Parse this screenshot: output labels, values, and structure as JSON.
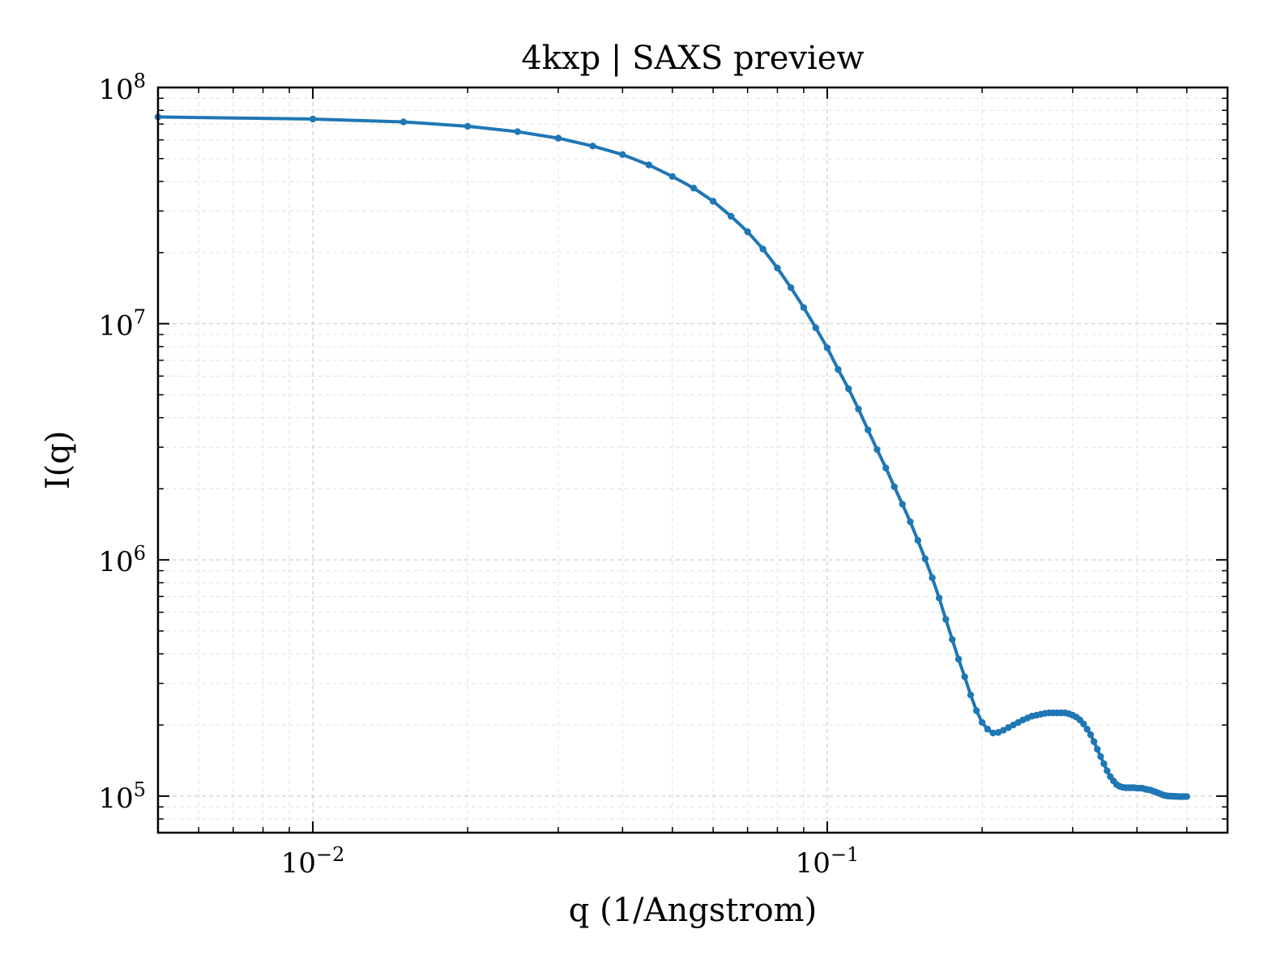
{
  "chart_data": {
    "type": "line",
    "title": "4kxp | SAXS preview",
    "xlabel": "q (1/Angstrom)",
    "ylabel": "I(q)",
    "xscale": "log",
    "yscale": "log",
    "xlim": [
      0.005,
      0.6
    ],
    "ylim": [
      70000,
      100000000
    ],
    "grid": true,
    "series_color": "#1f77b4",
    "x_ticks": [
      {
        "value": 0.01,
        "base": "10",
        "exp": "−2"
      },
      {
        "value": 0.1,
        "base": "10",
        "exp": "−1"
      }
    ],
    "y_ticks": [
      {
        "value": 100000,
        "base": "10",
        "exp": "5"
      },
      {
        "value": 1000000,
        "base": "10",
        "exp": "6"
      },
      {
        "value": 10000000,
        "base": "10",
        "exp": "7"
      },
      {
        "value": 100000000,
        "base": "10",
        "exp": "8"
      }
    ],
    "series": [
      {
        "x": [
          0.005,
          0.01,
          0.015,
          0.02,
          0.025,
          0.03,
          0.035,
          0.04,
          0.045,
          0.05,
          0.055,
          0.06,
          0.065,
          0.07,
          0.075,
          0.08,
          0.085,
          0.09,
          0.095,
          0.1,
          0.105,
          0.11,
          0.115,
          0.12,
          0.125,
          0.13,
          0.135,
          0.14,
          0.145,
          0.15,
          0.155,
          0.16,
          0.165,
          0.17,
          0.175,
          0.18,
          0.185,
          0.19,
          0.195,
          0.2,
          0.205,
          0.21,
          0.215,
          0.22,
          0.225,
          0.23,
          0.235,
          0.24,
          0.245,
          0.25,
          0.255,
          0.26,
          0.265,
          0.27,
          0.275,
          0.28,
          0.285,
          0.29,
          0.295,
          0.3,
          0.305,
          0.31,
          0.315,
          0.32,
          0.325,
          0.33,
          0.335,
          0.34,
          0.345,
          0.35,
          0.355,
          0.36,
          0.365,
          0.37,
          0.375,
          0.38,
          0.385,
          0.39,
          0.395,
          0.4,
          0.405,
          0.41,
          0.415,
          0.42,
          0.425,
          0.43,
          0.435,
          0.44,
          0.445,
          0.45,
          0.455,
          0.46,
          0.465,
          0.47,
          0.475,
          0.48,
          0.485,
          0.49,
          0.495,
          0.5
        ],
        "y": [
          75000000,
          73500000,
          71500000,
          68500000,
          65000000,
          61000000,
          56500000,
          52000000,
          47000000,
          42000000,
          37500000,
          33000000,
          28500000,
          24500000,
          20700000,
          17200000,
          14200000,
          11700000,
          9600000,
          7900000,
          6400000,
          5300000,
          4350000,
          3550000,
          2930000,
          2450000,
          2040000,
          1720000,
          1450000,
          1210000,
          1010000,
          840000,
          690000,
          560000,
          460000,
          380000,
          320000,
          268000,
          230000,
          205000,
          192000,
          185000,
          186000,
          190000,
          195000,
          200000,
          205000,
          210000,
          214000,
          218000,
          220000,
          222000,
          224000,
          225000,
          225000,
          225000,
          225000,
          225000,
          223000,
          220000,
          216000,
          210000,
          202000,
          192000,
          182000,
          170000,
          158000,
          147000,
          137000,
          128000,
          121000,
          116000,
          112000,
          110000,
          109000,
          108500,
          108500,
          108500,
          108500,
          108000,
          108000,
          108000,
          107000,
          106500,
          106000,
          105000,
          104000,
          103000,
          102000,
          101000,
          100500,
          100000,
          100000,
          99800,
          99700,
          99600,
          99500,
          99500,
          99500,
          99500
        ]
      }
    ]
  }
}
